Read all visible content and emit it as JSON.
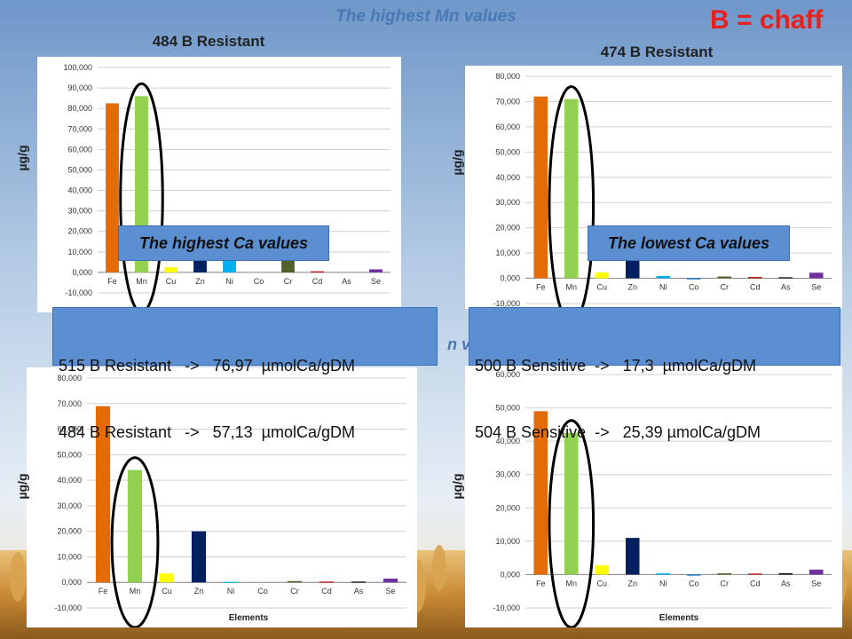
{
  "header": {
    "top_title": "The highest Mn values",
    "legend_note": "B = chaff",
    "partial_text": "n v"
  },
  "labels": {
    "highest_ca": "The highest Ca values",
    "lowest_ca": "The lowest Ca values"
  },
  "value_boxes": {
    "left": [
      "515 B Resistant   ->   76,97  µmolCa/gDM",
      "484 B Resistant   ->   57,13  µmolCa/gDM"
    ],
    "right": [
      "500 B Sensitive  ->   17,3  µmolCa/gDM",
      "504 B Sensitive  ->   25,39 µmolCa/gDM"
    ]
  },
  "colors": {
    "Fe": "#e36c09",
    "Mn": "#92d050",
    "Cu": "#ffff00",
    "Zn": "#002060",
    "Ni": "#00b0f0",
    "Co": "#0070c0",
    "Cr": "#4f6228",
    "Cd": "#c00000",
    "As": "#000000",
    "Se": "#7030a0",
    "box": "#5b8fd2",
    "accent_red": "#e8201c",
    "title_blue": "#4a78b5"
  },
  "chart_data": [
    {
      "type": "bar",
      "title": "484 B Resistant",
      "ylabel": "µg/g",
      "xlabel": "",
      "categories": [
        "Fe",
        "Mn",
        "Cu",
        "Zn",
        "Ni",
        "Co",
        "Cr",
        "Cd",
        "As",
        "Se"
      ],
      "values": [
        82.5,
        86.0,
        2.5,
        13.0,
        15.5,
        0.0,
        6.8,
        0.5,
        0.0,
        1.5
      ],
      "ylim": [
        -10,
        100
      ],
      "yticks": [
        "-10,000",
        "0,000",
        "10,000",
        "20,000",
        "30,000",
        "40,000",
        "50,000",
        "60,000",
        "70,000",
        "80,000",
        "90,000",
        "100,000"
      ],
      "grid": true,
      "highlight": "Mn"
    },
    {
      "type": "bar",
      "title": "474 B Resistant",
      "ylabel": "µg/g",
      "xlabel": "",
      "categories": [
        "Fe",
        "Mn",
        "Cu",
        "Zn",
        "Ni",
        "Co",
        "Cr",
        "Cd",
        "As",
        "Se"
      ],
      "values": [
        72.0,
        71.0,
        2.3,
        12.0,
        0.9,
        -0.3,
        0.7,
        0.5,
        0.4,
        2.2
      ],
      "ylim": [
        -10,
        80
      ],
      "yticks": [
        "-10,000",
        "0,000",
        "10,000",
        "20,000",
        "30,000",
        "40,000",
        "50,000",
        "60,000",
        "70,000",
        "80,000"
      ],
      "grid": true,
      "highlight": "Mn"
    },
    {
      "type": "bar",
      "title": "",
      "ylabel": "µg/g",
      "xlabel": "Elements",
      "categories": [
        "Fe",
        "Mn",
        "Cu",
        "Zn",
        "Ni",
        "Co",
        "Cr",
        "Cd",
        "As",
        "Se"
      ],
      "values": [
        69.0,
        44.0,
        3.5,
        20.0,
        0.2,
        0.0,
        0.5,
        0.3,
        0.3,
        1.5
      ],
      "ylim": [
        -10,
        80
      ],
      "yticks": [
        "-10,000",
        "0,000",
        "10,000",
        "20,000",
        "30,000",
        "40,000",
        "50,000",
        "60,000",
        "70,000",
        "80,000"
      ],
      "grid": true,
      "highlight": "Mn"
    },
    {
      "type": "bar",
      "title": "",
      "ylabel": "µg/g",
      "xlabel": "Elements",
      "categories": [
        "Fe",
        "Mn",
        "Cu",
        "Zn",
        "Ni",
        "Co",
        "Cr",
        "Cd",
        "As",
        "Se"
      ],
      "values": [
        49.0,
        42.5,
        2.8,
        11.0,
        0.4,
        -0.2,
        0.4,
        0.3,
        0.4,
        1.5
      ],
      "ylim": [
        -10,
        60
      ],
      "yticks": [
        "-10,000",
        "0,000",
        "10,000",
        "20,000",
        "30,000",
        "40,000",
        "50,000",
        "60,000"
      ],
      "grid": true,
      "highlight": "Mn"
    }
  ]
}
